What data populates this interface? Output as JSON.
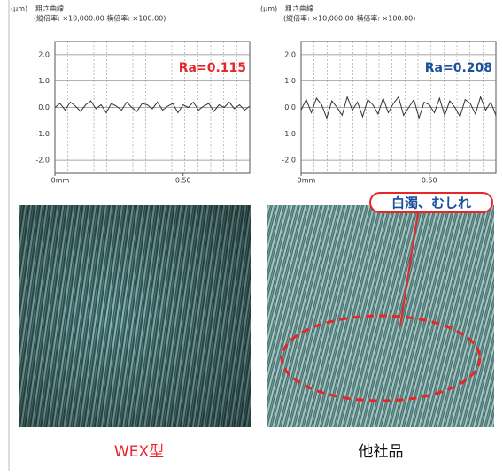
{
  "chart_data": [
    {
      "type": "line",
      "unit_label": "(μm)",
      "title": "粗さ曲線",
      "subtitle": "(縦倍率: ×10,000.00 横倍率: ×100.00)",
      "annotation": "Ra=0.115",
      "annotation_color": "#e8262a",
      "x": [
        0,
        0.02,
        0.04,
        0.06,
        0.08,
        0.1,
        0.12,
        0.14,
        0.16,
        0.18,
        0.2,
        0.22,
        0.24,
        0.26,
        0.28,
        0.3,
        0.32,
        0.34,
        0.36,
        0.38,
        0.4,
        0.42,
        0.44,
        0.46,
        0.48,
        0.5,
        0.52,
        0.54,
        0.56,
        0.58,
        0.6,
        0.62,
        0.64,
        0.66,
        0.68,
        0.7,
        0.72,
        0.74,
        0.76
      ],
      "series": [
        {
          "color": "#333333",
          "values": [
            0.0,
            0.15,
            -0.1,
            0.2,
            0.05,
            -0.15,
            0.1,
            0.25,
            -0.05,
            0.1,
            -0.2,
            0.15,
            0.05,
            -0.1,
            0.2,
            0.0,
            -0.15,
            0.15,
            0.1,
            -0.05,
            0.2,
            -0.1,
            0.05,
            0.15,
            -0.2,
            0.1,
            0.0,
            0.2,
            -0.1,
            0.05,
            0.15,
            -0.15,
            0.1,
            0.0,
            0.2,
            -0.05,
            0.1,
            -0.1,
            0.05
          ]
        }
      ],
      "xlim": [
        0,
        0.76
      ],
      "ylim": [
        -2.5,
        2.5
      ],
      "yticks": [
        {
          "value": 2,
          "label": "2.0"
        },
        {
          "value": 1,
          "label": "1.0"
        },
        {
          "value": 0,
          "label": "0.0"
        },
        {
          "value": -1,
          "label": "-1.0"
        },
        {
          "value": -2,
          "label": "-2.0"
        }
      ],
      "xticks": [
        {
          "value": 0,
          "label": "0mm"
        },
        {
          "value": 0.5,
          "label": "0.50"
        }
      ],
      "grid": true
    },
    {
      "type": "line",
      "unit_label": "(μm)",
      "title": "粗さ曲線",
      "subtitle": "(縦倍率: ×10,000.00 横倍率: ×100.00)",
      "annotation": "Ra=0.208",
      "annotation_color": "#1a4f9c",
      "x": [
        0,
        0.02,
        0.04,
        0.06,
        0.08,
        0.1,
        0.12,
        0.14,
        0.16,
        0.18,
        0.2,
        0.22,
        0.24,
        0.26,
        0.28,
        0.3,
        0.32,
        0.34,
        0.36,
        0.38,
        0.4,
        0.42,
        0.44,
        0.46,
        0.48,
        0.5,
        0.52,
        0.54,
        0.56,
        0.58,
        0.6,
        0.62,
        0.64,
        0.66,
        0.68,
        0.7,
        0.72,
        0.74,
        0.76
      ],
      "series": [
        {
          "color": "#333333",
          "values": [
            -0.1,
            0.3,
            -0.2,
            0.35,
            0.1,
            -0.4,
            0.25,
            0.0,
            -0.3,
            0.4,
            -0.1,
            0.2,
            -0.35,
            0.3,
            0.1,
            -0.25,
            0.35,
            -0.2,
            0.15,
            0.4,
            -0.3,
            0.0,
            0.3,
            -0.4,
            0.2,
            0.1,
            -0.2,
            0.35,
            -0.3,
            0.25,
            0.0,
            -0.35,
            0.3,
            0.15,
            -0.25,
            0.4,
            -0.1,
            0.2,
            -0.3
          ]
        }
      ],
      "xlim": [
        0,
        0.76
      ],
      "ylim": [
        -2.5,
        2.5
      ],
      "yticks": [
        {
          "value": 2,
          "label": "2.0"
        },
        {
          "value": 1,
          "label": "1.0"
        },
        {
          "value": 0,
          "label": "0.0"
        },
        {
          "value": -1,
          "label": "-1.0"
        },
        {
          "value": -2,
          "label": "-2.0"
        }
      ],
      "xticks": [
        {
          "value": 0,
          "label": "0mm"
        },
        {
          "value": 0.5,
          "label": "0.50"
        }
      ],
      "grid": true
    }
  ],
  "photos": [
    {
      "label": "WEX型",
      "label_color": "#e8262a"
    },
    {
      "label": "他社品",
      "label_color": "#111111",
      "callout": "白濁、むしれ"
    }
  ]
}
